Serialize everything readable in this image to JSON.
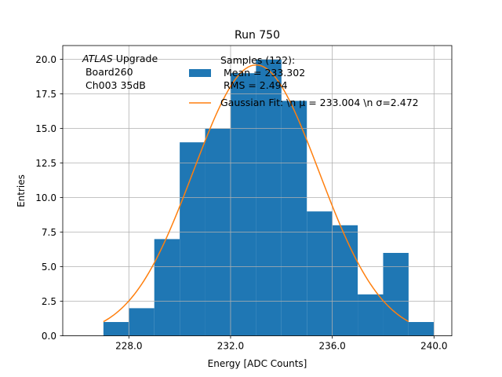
{
  "chart_data": {
    "type": "bar",
    "title": "Run 750",
    "xlabel": "Energy [ADC Counts]",
    "ylabel": "Entries",
    "xlim": [
      225.4,
      240.7
    ],
    "ylim": [
      0,
      21
    ],
    "grid": true,
    "bin_edges": [
      227,
      228,
      229,
      230,
      231,
      232,
      233,
      234,
      235,
      236,
      237,
      238,
      239,
      240
    ],
    "counts": [
      1,
      2,
      7,
      14,
      15,
      19,
      20,
      17,
      9,
      8,
      3,
      6,
      1
    ],
    "bar_color": "#1f77b4",
    "fit_color": "#ff7f0e",
    "xticks": [
      228,
      232,
      236,
      240
    ],
    "xtick_labels": [
      "228.0",
      "232.0",
      "236.0",
      "240.0"
    ],
    "yticks": [
      0,
      2.5,
      5,
      7.5,
      10,
      12.5,
      15,
      17.5,
      20
    ],
    "ytick_labels": [
      "0.0",
      "2.5",
      "5.0",
      "7.5",
      "10.0",
      "12.5",
      "15.0",
      "17.5",
      "20.0"
    ],
    "fit": {
      "amplitude": 19.6,
      "mu": 233.004,
      "sigma": 2.472,
      "x_range": [
        227,
        239
      ]
    },
    "annotation": {
      "line1_italic": "ATLAS",
      "line1_rest": " Upgrade",
      "line2": " Board260",
      "line3": " Ch003 35dB"
    },
    "legend": {
      "position": "top-center",
      "samples_lines": [
        "Samples (122):",
        " Mean = 233.302",
        " RMS = 2.494"
      ],
      "fit_label": "Gaussian Fit: \\n μ = 233.004 \\n σ=2.472"
    }
  }
}
